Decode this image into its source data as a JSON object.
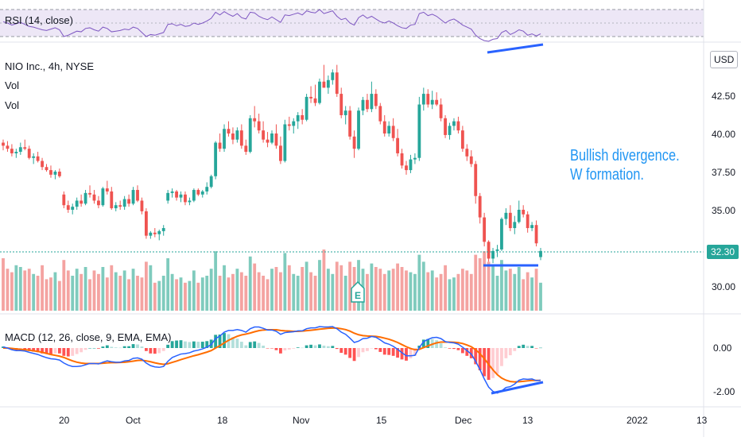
{
  "chart_meta": {
    "symbol_line": "NIO Inc., 4h, NYSE",
    "vol_label_1": "Vol",
    "vol_label_2": "Vol",
    "rsi_label": "RSI (14, close)",
    "macd_label": "MACD (12, 26, close, 9, EMA, EMA)",
    "currency": "USD",
    "last_price": "32.30",
    "earnings_marker": "E",
    "annotation_line1": "Bullish divergence.",
    "annotation_line2": "W formation."
  },
  "price_axis_ticks": [
    "42.50",
    "40.00",
    "37.50",
    "35.00",
    "30.00"
  ],
  "macd_axis_ticks": [
    "0.00",
    "-2.00"
  ],
  "time_axis_ticks": [
    "20",
    "Oct",
    "18",
    "Nov",
    "15",
    "Dec",
    "13",
    "2022",
    "13"
  ],
  "colors": {
    "up": "#26a69a",
    "down": "#ef5350",
    "up_volume": "#7fcbbd",
    "down_volume": "#f4a3a1",
    "rsi_line": "#7e57c2",
    "rsi_band": "#ede7f6",
    "macd_line": "#2962ff",
    "signal_line": "#ff6d00",
    "annotation": "#2196f3"
  },
  "chart_data": [
    {
      "type": "candlestick",
      "title": "NIO Inc., 4h, NYSE",
      "ylim": [
        29.0,
        45.2
      ],
      "ticks": [
        30.0,
        35.0,
        37.5,
        40.0,
        42.5
      ],
      "ohlc": [
        [
          39.4,
          39.6,
          38.9,
          39.2
        ],
        [
          39.2,
          39.5,
          38.8,
          39.0
        ],
        [
          39.0,
          39.3,
          38.5,
          38.7
        ],
        [
          38.7,
          39.0,
          38.4,
          38.8
        ],
        [
          38.8,
          39.4,
          38.6,
          39.1
        ],
        [
          39.1,
          39.6,
          38.9,
          39.0
        ],
        [
          39.0,
          39.2,
          38.3,
          38.4
        ],
        [
          38.4,
          38.7,
          38.0,
          38.5
        ],
        [
          38.5,
          38.8,
          38.1,
          38.2
        ],
        [
          38.2,
          38.4,
          37.6,
          37.8
        ],
        [
          37.8,
          38.0,
          37.5,
          37.6
        ],
        [
          37.6,
          37.9,
          37.1,
          37.3
        ],
        [
          37.3,
          37.6,
          37.0,
          37.5
        ],
        [
          37.5,
          37.7,
          37.1,
          37.2
        ],
        [
          36.0,
          36.2,
          35.1,
          35.3
        ],
        [
          35.3,
          35.6,
          34.8,
          35.0
        ],
        [
          35.0,
          35.4,
          34.7,
          35.2
        ],
        [
          35.2,
          35.8,
          35.0,
          35.6
        ],
        [
          35.6,
          36.0,
          35.2,
          35.4
        ],
        [
          35.4,
          36.3,
          35.3,
          36.1
        ],
        [
          36.1,
          36.6,
          35.8,
          36.0
        ],
        [
          36.0,
          36.3,
          35.4,
          35.6
        ],
        [
          35.6,
          35.9,
          35.1,
          35.3
        ],
        [
          35.3,
          36.5,
          35.2,
          36.4
        ],
        [
          36.4,
          36.9,
          36.0,
          36.2
        ],
        [
          36.2,
          36.5,
          35.0,
          35.1
        ],
        [
          35.1,
          35.5,
          34.9,
          35.3
        ],
        [
          35.3,
          35.6,
          35.0,
          35.2
        ],
        [
          35.2,
          35.9,
          35.0,
          35.7
        ],
        [
          35.7,
          36.0,
          35.2,
          35.4
        ],
        [
          35.4,
          36.5,
          35.3,
          36.3
        ],
        [
          36.3,
          36.6,
          35.5,
          35.6
        ],
        [
          35.6,
          35.8,
          34.7,
          34.9
        ],
        [
          34.9,
          35.1,
          33.1,
          33.3
        ],
        [
          33.3,
          33.6,
          33.1,
          33.5
        ],
        [
          33.5,
          33.8,
          33.2,
          33.4
        ],
        [
          33.4,
          33.7,
          33.0,
          33.6
        ],
        [
          33.6,
          34.0,
          33.3,
          33.8
        ],
        [
          35.6,
          36.3,
          35.4,
          36.1
        ],
        [
          36.1,
          36.4,
          35.8,
          36.2
        ],
        [
          36.2,
          36.3,
          35.6,
          35.8
        ],
        [
          35.8,
          36.2,
          35.5,
          36.0
        ],
        [
          36.0,
          36.2,
          35.3,
          35.5
        ],
        [
          35.5,
          35.8,
          35.3,
          35.6
        ],
        [
          35.6,
          36.4,
          35.5,
          36.3
        ],
        [
          36.3,
          36.4,
          35.9,
          36.0
        ],
        [
          36.0,
          36.3,
          35.8,
          36.2
        ],
        [
          36.2,
          36.8,
          36.0,
          36.5
        ],
        [
          36.5,
          37.3,
          36.4,
          37.2
        ],
        [
          37.2,
          39.5,
          37.0,
          39.4
        ],
        [
          39.4,
          40.0,
          38.8,
          39.0
        ],
        [
          39.0,
          40.6,
          38.8,
          40.3
        ],
        [
          40.3,
          40.8,
          39.8,
          40.0
        ],
        [
          40.0,
          40.4,
          39.3,
          39.6
        ],
        [
          39.6,
          40.4,
          39.4,
          40.2
        ],
        [
          40.2,
          40.6,
          39.0,
          39.2
        ],
        [
          39.2,
          39.6,
          38.6,
          38.8
        ],
        [
          38.8,
          41.2,
          38.7,
          41.0
        ],
        [
          41.0,
          41.8,
          40.4,
          40.8
        ],
        [
          40.8,
          41.3,
          40.0,
          40.2
        ],
        [
          40.2,
          40.8,
          39.4,
          39.6
        ],
        [
          39.6,
          40.1,
          39.1,
          39.4
        ],
        [
          39.4,
          40.2,
          39.3,
          40.0
        ],
        [
          40.0,
          40.6,
          39.0,
          39.2
        ],
        [
          39.2,
          39.8,
          38.0,
          38.2
        ],
        [
          38.2,
          40.9,
          38.1,
          40.6
        ],
        [
          40.6,
          41.1,
          40.2,
          40.5
        ],
        [
          40.5,
          41.0,
          40.0,
          40.8
        ],
        [
          40.8,
          41.4,
          40.3,
          41.2
        ],
        [
          41.2,
          41.6,
          40.6,
          40.9
        ],
        [
          40.9,
          42.6,
          40.8,
          42.4
        ],
        [
          42.4,
          43.1,
          42.0,
          42.3
        ],
        [
          42.3,
          43.2,
          41.8,
          42.0
        ],
        [
          42.0,
          43.6,
          41.9,
          43.4
        ],
        [
          43.4,
          44.5,
          43.0,
          43.0
        ],
        [
          43.0,
          43.8,
          42.6,
          43.5
        ],
        [
          43.5,
          44.2,
          43.2,
          44.0
        ],
        [
          44.0,
          44.5,
          42.4,
          42.6
        ],
        [
          42.6,
          43.0,
          41.0,
          41.2
        ],
        [
          41.2,
          41.8,
          40.6,
          41.5
        ],
        [
          41.5,
          41.8,
          39.6,
          39.8
        ],
        [
          39.8,
          40.2,
          38.4,
          39.0
        ],
        [
          39.0,
          41.7,
          38.9,
          41.5
        ],
        [
          41.5,
          42.4,
          41.2,
          42.2
        ],
        [
          42.2,
          42.6,
          41.4,
          41.6
        ],
        [
          41.6,
          43.4,
          41.4,
          42.6
        ],
        [
          42.6,
          42.9,
          41.6,
          41.8
        ],
        [
          41.8,
          42.0,
          40.6,
          40.8
        ],
        [
          40.8,
          41.2,
          39.8,
          40.0
        ],
        [
          40.0,
          40.8,
          39.8,
          40.5
        ],
        [
          40.5,
          41.0,
          39.5,
          39.7
        ],
        [
          39.7,
          40.3,
          38.5,
          38.7
        ],
        [
          38.7,
          39.0,
          37.7,
          37.9
        ],
        [
          37.9,
          38.2,
          37.3,
          37.6
        ],
        [
          37.6,
          38.6,
          37.4,
          38.3
        ],
        [
          38.3,
          38.7,
          38.0,
          38.4
        ],
        [
          38.4,
          42.4,
          38.2,
          41.9
        ],
        [
          41.9,
          43.0,
          41.5,
          42.6
        ],
        [
          42.6,
          42.9,
          41.7,
          41.9
        ],
        [
          41.9,
          42.8,
          41.6,
          42.2
        ],
        [
          42.2,
          42.7,
          41.8,
          41.9
        ],
        [
          41.9,
          42.3,
          40.8,
          41.0
        ],
        [
          41.0,
          41.2,
          39.7,
          39.9
        ],
        [
          39.9,
          40.7,
          39.6,
          40.5
        ],
        [
          40.5,
          41.0,
          40.2,
          40.8
        ],
        [
          40.8,
          41.1,
          40.0,
          40.2
        ],
        [
          40.2,
          40.5,
          38.8,
          39.0
        ],
        [
          39.0,
          39.3,
          38.2,
          38.5
        ],
        [
          38.5,
          38.9,
          37.8,
          38.0
        ],
        [
          38.0,
          38.2,
          35.4,
          35.9
        ],
        [
          35.9,
          36.1,
          34.1,
          34.5
        ],
        [
          34.5,
          34.8,
          32.6,
          32.9
        ],
        [
          32.9,
          33.0,
          31.6,
          31.8
        ],
        [
          31.8,
          32.5,
          31.5,
          32.3
        ],
        [
          32.3,
          32.7,
          31.9,
          32.4
        ],
        [
          32.4,
          34.5,
          32.3,
          34.4
        ],
        [
          34.4,
          35.1,
          34.0,
          34.8
        ],
        [
          34.8,
          35.3,
          33.6,
          33.8
        ],
        [
          33.8,
          34.6,
          33.4,
          34.2
        ],
        [
          34.2,
          35.6,
          34.1,
          35.0
        ],
        [
          35.0,
          35.3,
          34.5,
          34.7
        ],
        [
          34.7,
          34.9,
          33.5,
          33.8
        ],
        [
          33.8,
          34.2,
          33.6,
          34.0
        ],
        [
          34.0,
          34.3,
          32.6,
          32.8
        ],
        [
          31.9,
          32.5,
          31.7,
          32.3
        ]
      ],
      "volume": [
        3.0,
        2.4,
        2.2,
        2.6,
        2.5,
        2.3,
        2.4,
        2.1,
        2.0,
        2.6,
        1.8,
        1.9,
        2.2,
        1.7,
        2.9,
        2.3,
        2.0,
        2.4,
        2.1,
        2.5,
        1.8,
        2.3,
        2.1,
        2.5,
        1.9,
        2.6,
        2.2,
        2.0,
        2.3,
        1.8,
        2.4,
        2.0,
        1.9,
        2.8,
        2.6,
        1.6,
        1.7,
        2.0,
        3.0,
        2.1,
        1.8,
        1.9,
        1.6,
        1.7,
        2.3,
        1.6,
        1.9,
        2.0,
        2.4,
        3.4,
        2.0,
        2.6,
        1.9,
        2.1,
        2.4,
        2.2,
        2.0,
        3.1,
        2.7,
        2.2,
        2.0,
        1.8,
        2.4,
        2.5,
        2.2,
        3.3,
        2.6,
        2.1,
        2.0,
        2.5,
        2.8,
        2.2,
        2.0,
        2.9,
        3.5,
        2.4,
        2.1,
        2.8,
        2.6,
        2.0,
        2.8,
        2.5,
        2.9,
        2.4,
        2.1,
        2.7,
        2.5,
        2.4,
        2.1,
        2.3,
        2.4,
        2.7,
        2.5,
        2.3,
        2.2,
        2.1,
        3.2,
        2.8,
        2.2,
        2.3,
        1.9,
        2.1,
        2.6,
        1.8,
        1.9,
        2.1,
        2.4,
        2.3,
        2.1,
        3.2,
        3.0,
        3.4,
        2.8,
        2.6,
        2.0,
        2.9,
        2.3,
        2.4,
        2.1,
        2.5,
        1.8,
        2.2,
        1.9,
        2.4,
        1.6
      ]
    },
    {
      "type": "line",
      "title": "RSI (14, close)",
      "band": [
        30,
        70
      ],
      "ylim": [
        20,
        80
      ],
      "values": [
        52,
        50,
        47,
        49,
        51,
        48,
        45,
        44,
        42,
        40,
        39,
        41,
        43,
        40,
        30,
        32,
        35,
        38,
        37,
        42,
        43,
        40,
        38,
        44,
        42,
        37,
        38,
        39,
        41,
        40,
        44,
        42,
        36,
        30,
        33,
        32,
        34,
        36,
        48,
        49,
        46,
        48,
        45,
        46,
        50,
        48,
        50,
        53,
        57,
        66,
        62,
        67,
        63,
        60,
        64,
        58,
        56,
        66,
        65,
        60,
        57,
        55,
        59,
        55,
        51,
        62,
        61,
        63,
        65,
        62,
        68,
        66,
        65,
        70,
        64,
        66,
        68,
        60,
        55,
        57,
        50,
        47,
        58,
        62,
        57,
        60,
        56,
        52,
        50,
        53,
        50,
        46,
        43,
        42,
        47,
        48,
        64,
        66,
        61,
        63,
        60,
        55,
        50,
        54,
        56,
        52,
        47,
        44,
        41,
        32,
        27,
        24,
        23,
        26,
        27,
        36,
        39,
        33,
        36,
        40,
        38,
        32,
        34,
        31,
        34
      ]
    },
    {
      "type": "macd",
      "title": "MACD (12, 26, close, 9, EMA, EMA)",
      "ylim": [
        -2.6,
        1.2
      ],
      "ticks": [
        0.0,
        -2.0
      ],
      "macd": [
        0.05,
        0.0,
        -0.08,
        -0.12,
        -0.12,
        -0.14,
        -0.2,
        -0.25,
        -0.3,
        -0.38,
        -0.45,
        -0.5,
        -0.52,
        -0.56,
        -0.7,
        -0.8,
        -0.86,
        -0.86,
        -0.84,
        -0.78,
        -0.72,
        -0.72,
        -0.74,
        -0.66,
        -0.6,
        -0.64,
        -0.66,
        -0.66,
        -0.6,
        -0.58,
        -0.48,
        -0.46,
        -0.52,
        -0.7,
        -0.82,
        -0.88,
        -0.9,
        -0.86,
        -0.62,
        -0.44,
        -0.36,
        -0.28,
        -0.26,
        -0.22,
        -0.14,
        -0.1,
        -0.04,
        0.04,
        0.16,
        0.44,
        0.56,
        0.74,
        0.82,
        0.82,
        0.86,
        0.82,
        0.74,
        0.9,
        0.98,
        0.98,
        0.92,
        0.84,
        0.84,
        0.78,
        0.64,
        0.72,
        0.74,
        0.76,
        0.8,
        0.8,
        0.9,
        0.94,
        0.94,
        1.0,
        0.98,
        0.98,
        1.0,
        0.9,
        0.74,
        0.64,
        0.46,
        0.26,
        0.32,
        0.44,
        0.46,
        0.54,
        0.5,
        0.38,
        0.24,
        0.18,
        0.08,
        -0.06,
        -0.22,
        -0.36,
        -0.36,
        -0.34,
        0.02,
        0.3,
        0.4,
        0.48,
        0.5,
        0.44,
        0.3,
        0.26,
        0.24,
        0.18,
        0.04,
        -0.12,
        -0.28,
        -0.62,
        -1.0,
        -1.44,
        -1.82,
        -2.02,
        -2.1,
        -2.0,
        -1.84,
        -1.8,
        -1.68,
        -1.5,
        -1.44,
        -1.46,
        -1.44,
        -1.52,
        -1.5
      ],
      "signal": [
        0.0,
        0.0,
        -0.02,
        -0.04,
        -0.06,
        -0.08,
        -0.1,
        -0.13,
        -0.16,
        -0.2,
        -0.25,
        -0.3,
        -0.34,
        -0.38,
        -0.44,
        -0.52,
        -0.6,
        -0.66,
        -0.7,
        -0.72,
        -0.72,
        -0.72,
        -0.72,
        -0.71,
        -0.69,
        -0.68,
        -0.68,
        -0.67,
        -0.66,
        -0.64,
        -0.61,
        -0.58,
        -0.57,
        -0.6,
        -0.64,
        -0.69,
        -0.73,
        -0.76,
        -0.73,
        -0.67,
        -0.61,
        -0.54,
        -0.48,
        -0.42,
        -0.36,
        -0.31,
        -0.25,
        -0.19,
        -0.12,
        0.0,
        0.11,
        0.24,
        0.36,
        0.46,
        0.55,
        0.61,
        0.65,
        0.7,
        0.76,
        0.81,
        0.84,
        0.85,
        0.85,
        0.85,
        0.82,
        0.8,
        0.79,
        0.78,
        0.78,
        0.79,
        0.81,
        0.83,
        0.85,
        0.88,
        0.9,
        0.92,
        0.93,
        0.93,
        0.9,
        0.86,
        0.79,
        0.69,
        0.62,
        0.58,
        0.56,
        0.55,
        0.54,
        0.51,
        0.46,
        0.41,
        0.34,
        0.26,
        0.16,
        0.06,
        -0.02,
        -0.08,
        -0.06,
        0.02,
        0.1,
        0.18,
        0.24,
        0.28,
        0.28,
        0.28,
        0.27,
        0.25,
        0.21,
        0.14,
        0.06,
        -0.08,
        -0.26,
        -0.5,
        -0.76,
        -1.02,
        -1.24,
        -1.4,
        -1.5,
        -1.56,
        -1.58,
        -1.57,
        -1.55,
        -1.53,
        -1.51,
        -1.51,
        -1.51
      ]
    }
  ]
}
